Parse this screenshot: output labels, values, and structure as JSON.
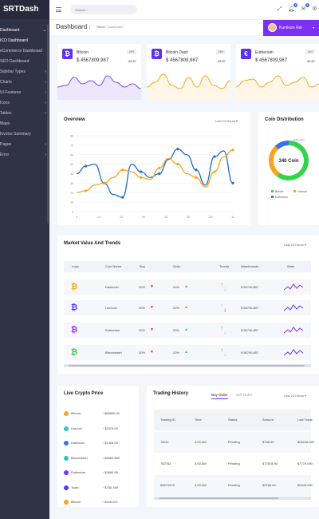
{
  "app": {
    "name": "SRTDash"
  },
  "sidebar": {
    "items": [
      {
        "label": "Dashboard",
        "active": true,
        "chevron": "⌄"
      },
      {
        "label": "ICO Dashboard",
        "active": true,
        "sub": true
      },
      {
        "label": "eCommerce Dashboard",
        "sub": true
      },
      {
        "label": "SEO Dashboard",
        "sub": true
      },
      {
        "label": "Sidebar Types",
        "chevron": "›"
      },
      {
        "label": "Charts",
        "chevron": "›"
      },
      {
        "label": "UI Features",
        "chevron": "›"
      },
      {
        "label": "Icons",
        "chevron": "›"
      },
      {
        "label": "Tables",
        "chevron": "›"
      },
      {
        "label": "Maps",
        "chevron": ""
      },
      {
        "label": "Invoice Summary",
        "chevron": ""
      },
      {
        "label": "Pages",
        "chevron": "›"
      },
      {
        "label": "Error",
        "chevron": "›"
      }
    ]
  },
  "topbar": {
    "search_placeholder": "Search...",
    "notif_count": "3",
    "msg_count": "3"
  },
  "header": {
    "title": "Dashboard",
    "breadcrumb_home": "Home",
    "breadcrumb_current": "Dashboard",
    "user_name": "Kumkum Rai",
    "user_dd": "▾"
  },
  "coins": [
    {
      "name": "Bitcoin",
      "period": "24H",
      "price": "$ 4567809,987",
      "change": "-45.87",
      "icon_color": "#5b33f0",
      "glyph": "₿",
      "line": "#7a4df2",
      "fill": "#ece7fc"
    },
    {
      "name": "Bitcoin Dash",
      "period": "24H",
      "price": "$ 4567809,987",
      "change": "-45.87",
      "icon_color": "#5b33f0",
      "glyph": "₿",
      "line": "#f7a51b",
      "fill": "#fff6e7"
    },
    {
      "name": "Eutherium",
      "period": "24H",
      "price": "$ 4567809,987",
      "change": "-45.87",
      "icon_color": "#5b33f0",
      "glyph": "€",
      "line": "#f7a51b",
      "fill": "#fff6e7"
    }
  ],
  "overview": {
    "title": "Overview",
    "select": "Last 24 Hours",
    "chart_data": {
      "type": "line",
      "x_ticks": [
        "0",
        "10",
        "20",
        "30",
        "40",
        "50",
        "100",
        "11"
      ],
      "y_ticks": [
        "0",
        "10",
        "20",
        "30",
        "40",
        "50",
        "60",
        "70",
        "80"
      ],
      "ylim": [
        0,
        80
      ],
      "series": [
        {
          "color": "#1e6fc4",
          "values": [
            40,
            48,
            50,
            30,
            18,
            15,
            50,
            42,
            36,
            40,
            55,
            66,
            60,
            44,
            28,
            58,
            64,
            30
          ]
        },
        {
          "color": "#f7a51b",
          "values": [
            20,
            22,
            28,
            30,
            36,
            44,
            42,
            36,
            34,
            46,
            56,
            50,
            40,
            36,
            26,
            42,
            58,
            65
          ]
        }
      ]
    }
  },
  "distribution": {
    "title": "Coin Distribution",
    "center_label": "340 Coin",
    "chart_data": {
      "type": "pie",
      "slices": [
        {
          "name": "Bitcoin",
          "value": 60,
          "color": "#35d24b"
        },
        {
          "name": "Litecoin",
          "value": 28,
          "color": "#f7a51b"
        },
        {
          "name": "Eutherium",
          "value": 12,
          "color": "#3f6fe8"
        }
      ]
    }
  },
  "market": {
    "title": "Market Value And Trends",
    "select": "Last 24 Hours",
    "columns": [
      "Logo",
      "Coin Name",
      "Buy",
      "Sells",
      "Trends",
      "Attachments",
      "Stats"
    ],
    "rows": [
      {
        "glyph": "₿",
        "color": "#f7a51b",
        "name": "Dashcoin",
        "buy": "30%",
        "sells": "20%",
        "attach": "$ 56746,857",
        "trend": "up",
        "stat": "#7b2ff7"
      },
      {
        "glyph": "₿",
        "color": "#5b33f0",
        "name": "LiteCoin",
        "buy": "30%",
        "sells": "20%",
        "attach": "$ 56746,857",
        "trend": "down",
        "stat": "#5b33f0"
      },
      {
        "glyph": "₿",
        "color": "#a02ff7",
        "name": "Euthorium",
        "buy": "30%",
        "sells": "20%",
        "attach": "$ 56746,857",
        "trend": "up",
        "stat": "#7b2ff7"
      },
      {
        "glyph": "₿",
        "color": "#35d24b",
        "name": "Bitcoindash",
        "buy": "30%",
        "sells": "20%",
        "attach": "$ 56746,857",
        "trend": "up",
        "stat": "#5b33f0"
      }
    ]
  },
  "live": {
    "title": "Live Crypto Price",
    "rows": [
      {
        "name": "Bitcoin",
        "price": "$65909.00",
        "color": "#f7a51b"
      },
      {
        "name": "Litecoin",
        "price": "$2978.00",
        "color": "#35c1c4"
      },
      {
        "name": "Dashcoin",
        "price": "$1328.00",
        "color": "#3f6fe8"
      },
      {
        "name": "Bitcoindash",
        "price": "$5684.890",
        "color": "#35c1c4"
      },
      {
        "name": "Eutherium",
        "price": "$3890.98",
        "color": "#7b2ff7"
      },
      {
        "name": "Toain",
        "price": "$750.789",
        "color": "#5b33f0"
      },
      {
        "name": "Bitcoin",
        "price": "$325.037",
        "color": "#f7a51b"
      }
    ]
  },
  "trading": {
    "title": "Trading History",
    "tab_buy": "Buy Order",
    "tab_sell": "Sell Order",
    "select": "Last 24 Hours",
    "columns": [
      "Trading ID",
      "Time",
      "Status",
      "Amount",
      "Last Trade"
    ],
    "rows": [
      {
        "id": "78211",
        "time": "4.00 AM",
        "status": "Pending",
        "amount": "$758.90",
        "last": "$05245.090"
      },
      {
        "id": "782782",
        "time": "4.00 AM",
        "status": "Pending",
        "amount": "$77878.90",
        "last": "$7778.090"
      },
      {
        "id": "89675978",
        "time": "4.00 AM",
        "status": "Pending",
        "amount": "$0768.90",
        "last": "$0945.090"
      }
    ]
  }
}
